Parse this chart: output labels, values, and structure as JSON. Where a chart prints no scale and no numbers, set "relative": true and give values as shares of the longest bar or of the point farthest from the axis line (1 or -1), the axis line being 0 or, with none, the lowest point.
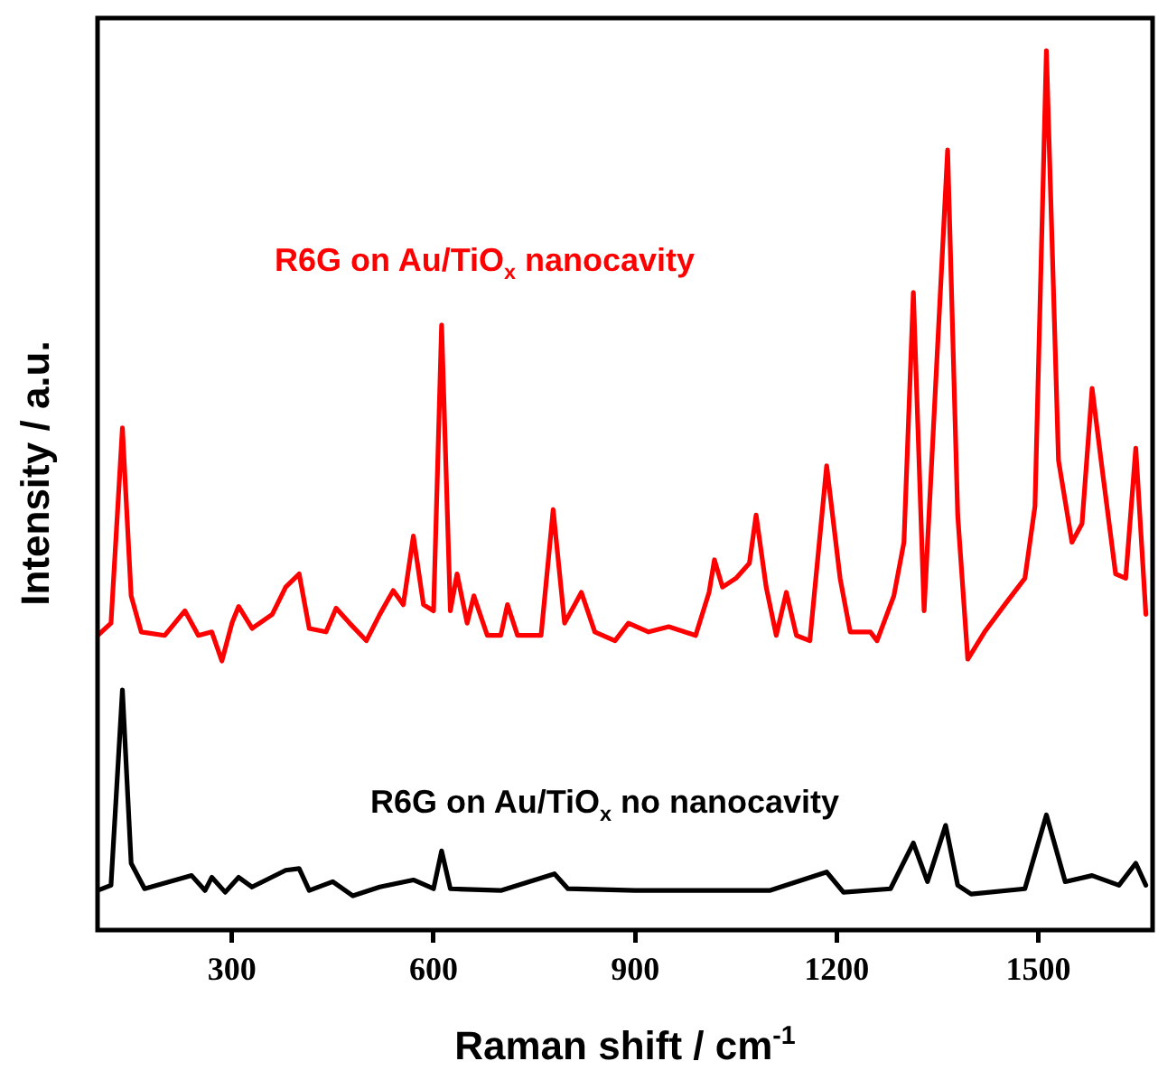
{
  "chart_data": {
    "type": "line",
    "xlabel": "Raman shift / cm$^{-1}$",
    "ylabel": "Intensity / a.u.",
    "relative": true,
    "xlim": [
      100,
      1670
    ],
    "xticks": [
      300,
      600,
      900,
      1200,
      1500
    ],
    "grid": false,
    "legend": false,
    "marker": "none",
    "line_style": "solid",
    "series": [
      {
        "name": "R6G on Au/TiO$_{x}$ nanocavity",
        "color": "#ff0000",
        "x": [
          100,
          120,
          137,
          150,
          165,
          200,
          230,
          250,
          270,
          285,
          300,
          310,
          330,
          360,
          380,
          400,
          415,
          440,
          455,
          475,
          500,
          520,
          540,
          555,
          570,
          585,
          600,
          612,
          625,
          635,
          650,
          660,
          680,
          700,
          710,
          725,
          760,
          778,
          795,
          810,
          820,
          840,
          870,
          890,
          920,
          950,
          990,
          1010,
          1018,
          1030,
          1050,
          1070,
          1080,
          1095,
          1110,
          1125,
          1140,
          1160,
          1185,
          1205,
          1220,
          1250,
          1260,
          1285,
          1300,
          1314,
          1330,
          1365,
          1380,
          1395,
          1420,
          1450,
          1480,
          1495,
          1512,
          1530,
          1550,
          1565,
          1580,
          1595,
          1615,
          1630,
          1645,
          1660
        ],
        "values": [
          0.335,
          0.349,
          0.571,
          0.38,
          0.339,
          0.335,
          0.363,
          0.335,
          0.339,
          0.306,
          0.349,
          0.368,
          0.343,
          0.359,
          0.39,
          0.405,
          0.343,
          0.339,
          0.366,
          0.349,
          0.329,
          0.359,
          0.386,
          0.37,
          0.448,
          0.37,
          0.363,
          0.688,
          0.363,
          0.405,
          0.349,
          0.38,
          0.335,
          0.335,
          0.37,
          0.335,
          0.335,
          0.478,
          0.349,
          0.37,
          0.384,
          0.339,
          0.329,
          0.349,
          0.339,
          0.345,
          0.335,
          0.384,
          0.421,
          0.39,
          0.4,
          0.417,
          0.472,
          0.39,
          0.335,
          0.384,
          0.335,
          0.329,
          0.528,
          0.4,
          0.339,
          0.339,
          0.329,
          0.38,
          0.441,
          0.725,
          0.363,
          0.887,
          0.472,
          0.308,
          0.339,
          0.37,
          0.4,
          0.482,
          1,
          0.534,
          0.441,
          0.462,
          0.616,
          0.524,
          0.405,
          0.4,
          0.548,
          0.359
        ]
      },
      {
        "name": "R6G on Au/TiO$_{x}$ no nanocavity",
        "color": "#000000",
        "x": [
          100,
          120,
          137,
          150,
          170,
          240,
          260,
          270,
          290,
          310,
          330,
          380,
          400,
          415,
          450,
          480,
          520,
          570,
          600,
          612,
          625,
          700,
          780,
          800,
          900,
          1000,
          1100,
          1185,
          1210,
          1280,
          1314,
          1335,
          1362,
          1380,
          1400,
          1480,
          1512,
          1540,
          1580,
          1620,
          1645,
          1660
        ],
        "values": [
          0.045,
          0.051,
          0.273,
          0.076,
          0.047,
          0.062,
          0.045,
          0.06,
          0.043,
          0.06,
          0.049,
          0.068,
          0.07,
          0.045,
          0.055,
          0.039,
          0.049,
          0.057,
          0.047,
          0.09,
          0.047,
          0.045,
          0.064,
          0.047,
          0.045,
          0.045,
          0.045,
          0.066,
          0.043,
          0.047,
          0.099,
          0.055,
          0.119,
          0.051,
          0.041,
          0.047,
          0.131,
          0.055,
          0.062,
          0.051,
          0.076,
          0.051
        ]
      }
    ]
  }
}
